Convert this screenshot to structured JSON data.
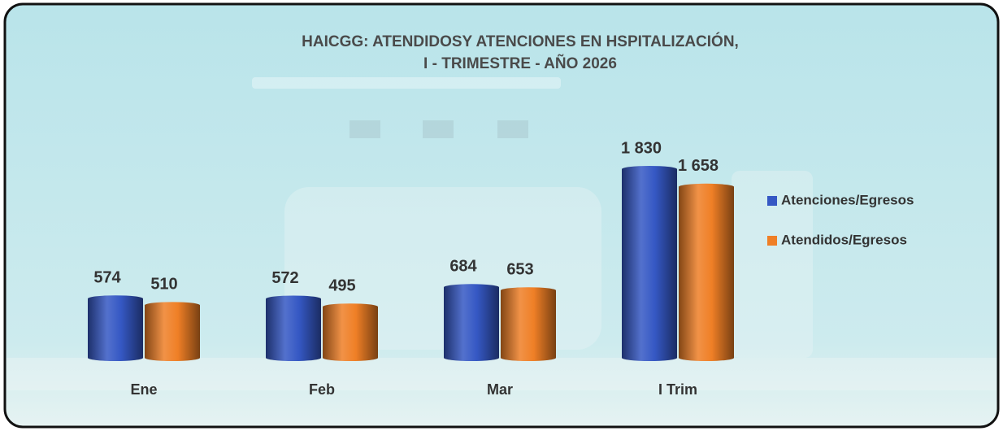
{
  "chart_data": {
    "type": "bar",
    "title": "HAICGG: ATENDIDOSY ATENCIONES EN HSPITALIZACIÓN,",
    "subtitle": "I - TRIMESTRE - AÑO 2026",
    "categories": [
      "Ene",
      "Feb",
      "Mar",
      "I Trim"
    ],
    "series": [
      {
        "name": "Atenciones/Egresos",
        "color": "#3558c4",
        "values": [
          574,
          572,
          684,
          1830
        ],
        "value_labels": [
          "574",
          "572",
          "684",
          "1 830"
        ]
      },
      {
        "name": "Atendidos/Egresos",
        "color": "#ef7f26",
        "values": [
          510,
          495,
          653,
          1658
        ],
        "value_labels": [
          "510",
          "495",
          "653",
          "1 658"
        ]
      }
    ],
    "legend": "right"
  }
}
